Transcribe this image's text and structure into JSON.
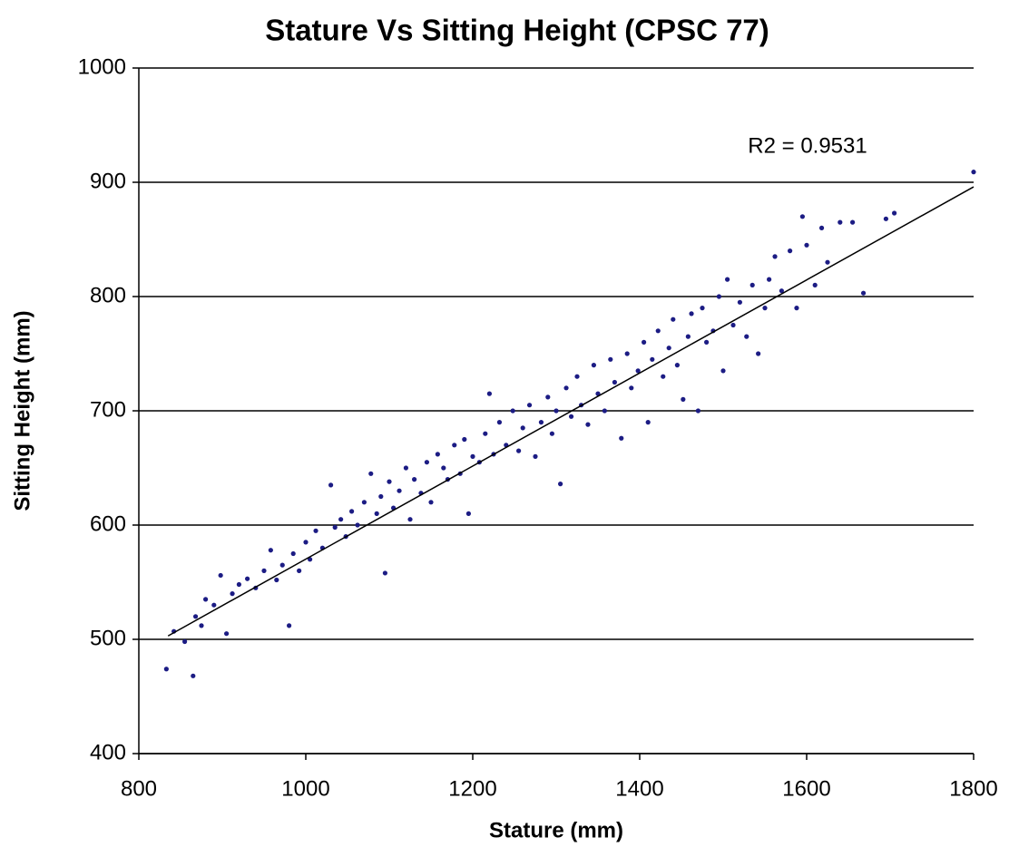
{
  "chart_data": {
    "type": "scatter",
    "title": "Stature Vs Sitting Height (CPSC 77)",
    "x_label": "Stature (mm)",
    "y_label": "Sitting Height (mm)",
    "annotation": "R2 = 0.9531",
    "xlim": [
      800,
      1800
    ],
    "ylim": [
      400,
      1000
    ],
    "xticks": [
      800,
      1000,
      1200,
      1400,
      1600,
      1800
    ],
    "yticks": [
      400,
      500,
      600,
      700,
      800,
      900,
      1000
    ],
    "grid": true,
    "series": [
      {
        "color": "#1c1c84",
        "x": [
          833,
          842,
          855,
          865,
          868,
          875,
          880,
          890,
          898,
          905,
          912,
          920,
          930,
          940,
          950,
          958,
          965,
          972,
          980,
          985,
          992,
          1000,
          1005,
          1012,
          1020,
          1030,
          1035,
          1042,
          1048,
          1055,
          1062,
          1070,
          1078,
          1085,
          1090,
          1095,
          1100,
          1105,
          1112,
          1120,
          1125,
          1130,
          1138,
          1145,
          1150,
          1158,
          1165,
          1170,
          1178,
          1185,
          1190,
          1195,
          1200,
          1208,
          1215,
          1220,
          1225,
          1232,
          1240,
          1248,
          1255,
          1260,
          1268,
          1275,
          1282,
          1290,
          1295,
          1300,
          1305,
          1312,
          1318,
          1325,
          1330,
          1338,
          1345,
          1350,
          1358,
          1365,
          1370,
          1378,
          1385,
          1390,
          1398,
          1405,
          1410,
          1415,
          1422,
          1428,
          1435,
          1440,
          1445,
          1452,
          1458,
          1462,
          1470,
          1475,
          1480,
          1488,
          1495,
          1500,
          1505,
          1512,
          1520,
          1528,
          1535,
          1542,
          1550,
          1555,
          1562,
          1570,
          1580,
          1588,
          1595,
          1600,
          1610,
          1618,
          1625,
          1640,
          1655,
          1668,
          1695,
          1705,
          1800
        ],
        "values": [
          474,
          507,
          498,
          468,
          520,
          512,
          535,
          530,
          556,
          505,
          540,
          548,
          553,
          545,
          560,
          578,
          552,
          565,
          512,
          575,
          560,
          585,
          570,
          595,
          580,
          635,
          598,
          605,
          590,
          612,
          600,
          620,
          645,
          610,
          625,
          558,
          638,
          615,
          630,
          650,
          605,
          640,
          628,
          655,
          620,
          662,
          650,
          640,
          670,
          645,
          675,
          610,
          660,
          655,
          680,
          715,
          662,
          690,
          670,
          700,
          665,
          685,
          705,
          660,
          690,
          712,
          680,
          700,
          636,
          720,
          695,
          730,
          705,
          688,
          740,
          715,
          700,
          745,
          725,
          676,
          750,
          720,
          735,
          760,
          690,
          745,
          770,
          730,
          755,
          780,
          740,
          710,
          765,
          785,
          700,
          790,
          760,
          770,
          800,
          735,
          815,
          775,
          795,
          765,
          810,
          750,
          790,
          815,
          835,
          805,
          840,
          790,
          870,
          845,
          810,
          860,
          830,
          865,
          865,
          803,
          868,
          873,
          909
        ]
      }
    ],
    "trendline": {
      "color": "#000000",
      "x": [
        835,
        1800
      ],
      "values": [
        503,
        896
      ]
    }
  }
}
